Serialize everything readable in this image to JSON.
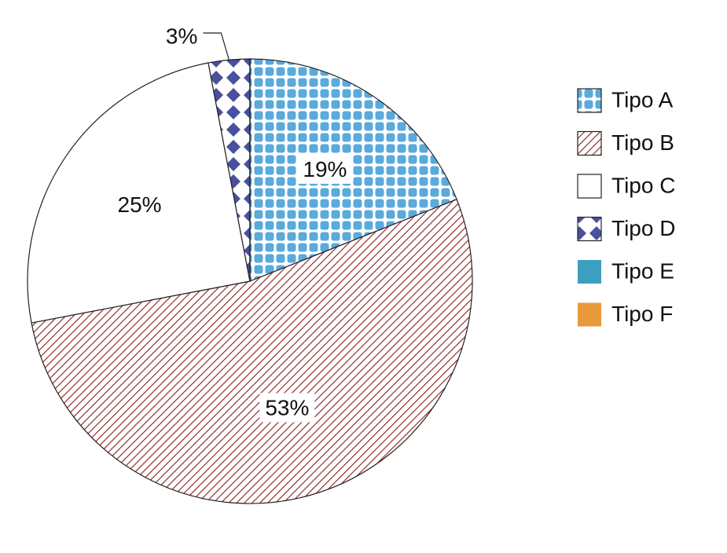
{
  "chart_data": {
    "type": "pie",
    "categories": [
      "Tipo A",
      "Tipo B",
      "Tipo C",
      "Tipo D",
      "Tipo E",
      "Tipo F"
    ],
    "values": [
      19,
      53,
      25,
      3,
      0,
      0
    ],
    "value_labels": [
      "19%",
      "53%",
      "25%",
      "3%",
      null,
      null
    ],
    "colors": [
      "#5aaadc",
      "#8b1c1c",
      "#ffffff",
      "#4a4f9e",
      "#3d9fbe",
      "#e8993a"
    ],
    "patterns": [
      "dots",
      "hatch",
      "none",
      "diamonds",
      "none",
      "none"
    ],
    "legend": "right"
  }
}
